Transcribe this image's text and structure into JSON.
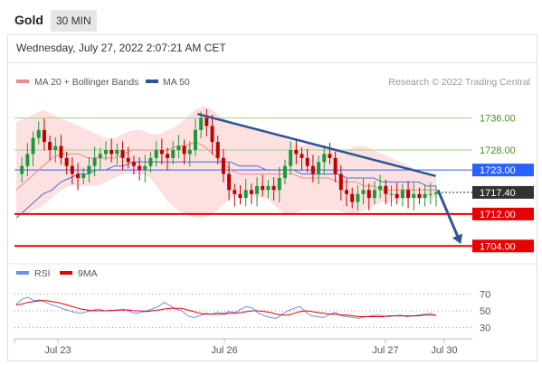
{
  "header": {
    "asset": "Gold",
    "timeframe": "30 MIN"
  },
  "datetime": "Wednesday, July 27, 2022 2:07:21 AM CET",
  "legend": {
    "ma20": "MA 20 + Bollinger Bands",
    "ma50": "MA 50",
    "credit": "Research © 2022 Trading Central"
  },
  "rsi_legend": {
    "rsi": "RSI",
    "ma": "9MA"
  },
  "colors": {
    "green_line": "#a6d28c",
    "blue_line": "#2962ff",
    "red_line": "#e60000",
    "trend": "#2f5597",
    "up": "#1a9a3a",
    "down": "#c00000",
    "band": "#fde1e1",
    "ma20": "#f08a8a",
    "ma50": "#4a6fd0",
    "price_box": "#333333"
  },
  "chart_data": [
    {
      "type": "candlestick",
      "ylim": [
        1700,
        1742
      ],
      "x_ticks": [
        "Jul 23",
        "Jul 26",
        "Jul 27",
        "Jul 30"
      ],
      "levels": [
        {
          "value": 1736.0,
          "label": "1736.00",
          "style": "green"
        },
        {
          "value": 1728.0,
          "label": "1728.00",
          "style": "green"
        },
        {
          "value": 1723.0,
          "label": "1723.00",
          "style": "blue"
        },
        {
          "value": 1712.0,
          "label": "1712.00",
          "style": "red"
        },
        {
          "value": 1704.0,
          "label": "1704.00",
          "style": "red"
        }
      ],
      "current_price": {
        "value": 1717.4,
        "label": "1717.40"
      },
      "trendline": {
        "from": [
          0.4,
          1737.0
        ],
        "to": [
          0.92,
          1721.5
        ]
      },
      "forecast_arrow": {
        "from": [
          0.925,
          1718.0
        ],
        "to": [
          0.975,
          1704.5
        ]
      },
      "closes": [
        1722,
        1724,
        1727,
        1731,
        1733,
        1730,
        1728,
        1729,
        1726,
        1724,
        1722,
        1721,
        1722,
        1724,
        1726,
        1727,
        1728,
        1727,
        1728,
        1726,
        1725,
        1724,
        1723,
        1724,
        1726,
        1728,
        1727,
        1726,
        1728,
        1729,
        1727,
        1728,
        1733,
        1736,
        1734,
        1730,
        1726,
        1722,
        1718,
        1717,
        1716,
        1718,
        1717,
        1719,
        1718,
        1719,
        1718,
        1721,
        1724,
        1728,
        1727,
        1726,
        1724,
        1722,
        1725,
        1727,
        1726,
        1722,
        1718,
        1717,
        1715,
        1717,
        1718,
        1716,
        1718,
        1719,
        1717,
        1717,
        1716,
        1718,
        1716,
        1717,
        1716,
        1717,
        1717,
        1717.4
      ],
      "upper_band": [
        1735,
        1736,
        1737,
        1738,
        1737,
        1736,
        1735,
        1734,
        1733,
        1732,
        1731,
        1731,
        1732,
        1733,
        1733,
        1732,
        1732,
        1733,
        1734,
        1736,
        1738,
        1739,
        1738,
        1736,
        1735,
        1734,
        1734,
        1733,
        1732,
        1732,
        1731,
        1730,
        1729,
        1730,
        1729,
        1728,
        1728,
        1728,
        1729,
        1729,
        1728,
        1727,
        1726,
        1725,
        1724,
        1723,
        1722,
        1722
      ],
      "lower_band": [
        1711,
        1712,
        1713,
        1714,
        1716,
        1718,
        1719,
        1719,
        1719,
        1719,
        1720,
        1721,
        1722,
        1722,
        1722,
        1721,
        1718,
        1715,
        1713,
        1712,
        1711,
        1711,
        1712,
        1714,
        1716,
        1717,
        1717,
        1716,
        1716,
        1714,
        1712,
        1712,
        1713,
        1713,
        1713,
        1713,
        1713,
        1712,
        1712,
        1713,
        1714,
        1715,
        1715,
        1716,
        1716,
        1716,
        1716,
        1716
      ],
      "ma20": [
        1718,
        1720,
        1722,
        1724,
        1726,
        1727,
        1727,
        1727,
        1726,
        1726,
        1726,
        1726,
        1727,
        1728,
        1728,
        1728,
        1728,
        1728,
        1729,
        1729,
        1730,
        1729,
        1727,
        1725,
        1723,
        1722,
        1722,
        1722,
        1722,
        1722,
        1722,
        1722,
        1721,
        1721,
        1721,
        1721,
        1720,
        1720,
        1720,
        1719,
        1719,
        1718,
        1718,
        1718,
        1718,
        1718,
        1718,
        1718
      ],
      "ma50": [
        1711,
        1713,
        1715,
        1717,
        1718,
        1720,
        1721,
        1722,
        1722,
        1723,
        1723,
        1724,
        1724,
        1725,
        1725,
        1725,
        1725,
        1725,
        1725,
        1725,
        1725,
        1725,
        1725,
        1725,
        1725,
        1724,
        1724,
        1724,
        1723,
        1723,
        1723,
        1723,
        1722,
        1722,
        1722,
        1722,
        1722,
        1721,
        1721,
        1721,
        1721,
        1720,
        1720,
        1720,
        1720,
        1720,
        1719,
        1719
      ]
    },
    {
      "type": "line",
      "title": "RSI",
      "ylim": [
        20,
        80
      ],
      "y_ticks": [
        70,
        50,
        30
      ],
      "rsi": [
        58,
        64,
        66,
        62,
        63,
        60,
        57,
        55,
        52,
        50,
        48,
        47,
        49,
        51,
        52,
        50,
        51,
        50,
        52,
        50,
        47,
        48,
        50,
        52,
        55,
        60,
        56,
        52,
        50,
        44,
        42,
        44,
        47,
        46,
        48,
        47,
        49,
        48,
        52,
        55,
        53,
        47,
        44,
        42,
        41,
        46,
        50,
        53,
        55,
        48,
        44,
        43,
        42,
        46,
        48,
        44,
        43,
        42,
        41,
        43,
        44,
        45,
        44,
        43,
        44,
        45,
        43,
        44,
        45,
        46,
        47,
        44
      ],
      "ma": [
        57,
        58,
        60,
        61,
        62,
        62,
        61,
        60,
        58,
        56,
        54,
        52,
        51,
        50,
        50,
        50,
        50,
        51,
        51,
        51,
        50,
        50,
        49,
        50,
        51,
        52,
        53,
        53,
        53,
        51,
        49,
        47,
        46,
        46,
        46,
        46,
        47,
        47,
        48,
        49,
        50,
        50,
        49,
        48,
        46,
        45,
        45,
        47,
        49,
        50,
        49,
        48,
        47,
        46,
        46,
        45,
        45,
        44,
        43,
        43,
        43,
        43,
        43,
        44,
        44,
        44,
        44,
        44,
        44,
        45,
        45,
        45
      ]
    }
  ]
}
